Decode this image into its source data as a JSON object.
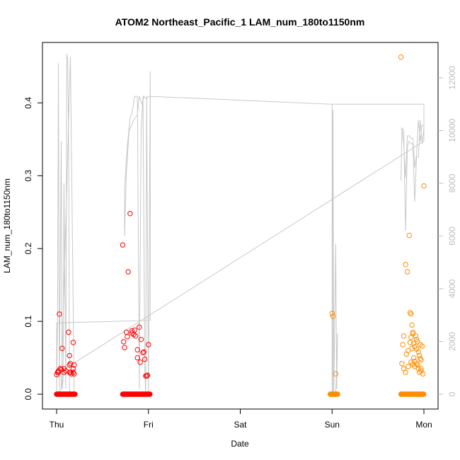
{
  "chart_data": {
    "type": "scatter",
    "title": "ATOM2 Northeast_Pacific_1 LAM_num_180to1150nm",
    "xlabel": "Date",
    "ylabel": "LAM_num_180to1150nm",
    "x_ticks": [
      "Thu",
      "Fri",
      "Sat",
      "Sun",
      "Mon"
    ],
    "x_unit": "days since Thu 00:00",
    "xlim": [
      0,
      4
    ],
    "ylim": [
      0,
      0.46
    ],
    "y_ticks": [
      "0.0",
      "0.1",
      "0.2",
      "0.3",
      "0.4"
    ],
    "y2_ticks": [
      "0",
      "2000",
      "4000",
      "6000",
      "8000",
      "10000",
      "12000"
    ],
    "y2lim": [
      0,
      13200
    ],
    "grid": false,
    "colors": {
      "series1": "#ff0000",
      "series2": "#ff8c00",
      "secondary": "#c8c8c8"
    },
    "series": [
      {
        "name": "",
        "color": "#ff0000",
        "x": [
          0.0,
          0.01,
          0.02,
          0.03,
          0.04,
          0.06,
          0.08,
          0.1,
          0.13,
          0.15,
          0.18,
          0.18,
          0.18,
          0.19,
          0.19,
          0.02,
          0.05,
          0.08,
          0.14,
          0.14,
          0.14,
          0.15,
          0.16,
          0.72,
          0.74,
          0.76,
          0.78,
          0.8,
          0.82,
          0.84,
          0.85,
          0.86,
          0.88,
          0.9,
          0.92,
          0.95,
          0.97,
          0.99,
          1.0,
          0.73,
          0.77,
          0.82,
          0.91,
          0.88,
          0.94,
          0.96,
          0.98
        ],
        "y": [
          0.027,
          0.03,
          0.03,
          0.11,
          0.035,
          0.063,
          0.03,
          0.032,
          0.085,
          0.042,
          0.071,
          0.035,
          0.03,
          0.04,
          0.028,
          0.032,
          0.034,
          0.035,
          0.053,
          0.04,
          0.03,
          0.03,
          0.028,
          0.205,
          0.064,
          0.085,
          0.168,
          0.248,
          0.087,
          0.082,
          0.088,
          0.08,
          0.05,
          0.092,
          0.075,
          0.058,
          0.025,
          0.026,
          0.068,
          0.072,
          0.079,
          0.084,
          0.044,
          0.061,
          0.057,
          0.048,
          0.025
        ]
      },
      {
        "name": "",
        "color": "#ff8c00",
        "x": [
          3.0,
          3.01,
          3.04,
          3.75,
          3.77,
          3.8,
          3.82,
          3.84,
          3.85,
          3.86,
          3.87,
          3.88,
          3.89,
          3.9,
          3.91,
          3.92,
          3.93,
          3.94,
          3.95,
          3.96,
          3.97,
          3.98,
          4.0,
          3.76,
          3.78,
          3.81,
          3.83,
          3.85,
          3.86,
          3.87,
          3.88,
          3.89,
          3.9,
          3.92,
          3.93,
          3.94,
          3.96,
          3.97,
          3.99,
          3.78,
          3.8,
          3.83,
          3.86,
          3.88,
          3.9,
          3.92,
          3.95,
          3.97
        ],
        "y": [
          0.111,
          0.107,
          0.028,
          0.463,
          0.068,
          0.178,
          0.168,
          0.218,
          0.112,
          0.11,
          0.095,
          0.085,
          0.07,
          0.065,
          0.08,
          0.062,
          0.072,
          0.058,
          0.053,
          0.068,
          0.047,
          0.066,
          0.286,
          0.042,
          0.08,
          0.055,
          0.06,
          0.071,
          0.078,
          0.063,
          0.083,
          0.05,
          0.045,
          0.075,
          0.04,
          0.035,
          0.049,
          0.032,
          0.028,
          0.035,
          0.03,
          0.038,
          0.044,
          0.041,
          0.038,
          0.042,
          0.03,
          0.035
        ]
      },
      {
        "name": "",
        "color": "#c8c8c8",
        "line": true,
        "x": [
          0.0,
          0.01,
          0.02,
          0.03,
          0.05,
          0.06,
          0.07,
          0.08,
          0.1,
          0.11,
          0.12,
          0.13,
          0.14,
          0.15,
          0.16,
          0.17,
          0.18,
          0.19,
          0.2,
          0.19,
          0.15,
          0.05,
          0.0,
          0.0,
          1.02,
          1.02,
          1.0,
          0.98,
          0.97,
          0.96,
          0.94,
          0.92,
          0.9,
          0.88,
          0.85,
          0.82,
          0.8,
          0.77,
          0.74,
          0.74,
          0.76,
          0.79,
          0.84,
          0.86,
          0.88,
          0.9,
          0.93,
          0.95,
          0.98,
          1.0,
          1.02,
          3.0,
          3.0,
          3.01,
          3.02,
          3.04,
          3.05,
          3.06,
          3.04,
          3.02,
          3.01,
          3.0,
          3.0,
          4.0,
          4.0,
          3.98,
          3.96,
          3.94,
          3.92,
          3.9,
          3.88,
          3.86,
          3.84,
          3.82,
          3.8,
          3.78,
          3.76,
          3.75,
          3.76,
          3.78,
          3.8,
          3.82,
          3.84,
          3.86,
          3.88,
          3.9,
          3.92,
          3.94,
          3.96,
          3.98,
          4.0,
          4.0,
          0.0
        ],
        "y": [
          0,
          2800,
          12550,
          200,
          9600,
          200,
          500,
          8000,
          200,
          12900,
          12700,
          10000,
          200,
          0,
          0,
          0,
          0,
          0,
          0,
          200,
          12800,
          200,
          0,
          2700,
          2800,
          12250,
          0,
          11300,
          0,
          1000,
          11300,
          10000,
          200,
          11300,
          11300,
          10650,
          10500,
          9400,
          7800,
          6000,
          8400,
          10000,
          10400,
          10500,
          10600,
          11300,
          11000,
          11300,
          11200,
          11300,
          11300,
          11000,
          0,
          10800,
          100,
          5700,
          200,
          2300,
          0,
          0,
          0,
          11000,
          11000,
          11000,
          10100,
          9500,
          10400,
          9000,
          9000,
          7300,
          9500,
          9500,
          9600,
          9400,
          6200,
          10000,
          10100,
          8100,
          10100,
          9500,
          8200,
          9800,
          9800,
          9700,
          9700,
          8600,
          9100,
          10400,
          9600,
          10200,
          10200,
          9600,
          760
        ]
      }
    ]
  }
}
